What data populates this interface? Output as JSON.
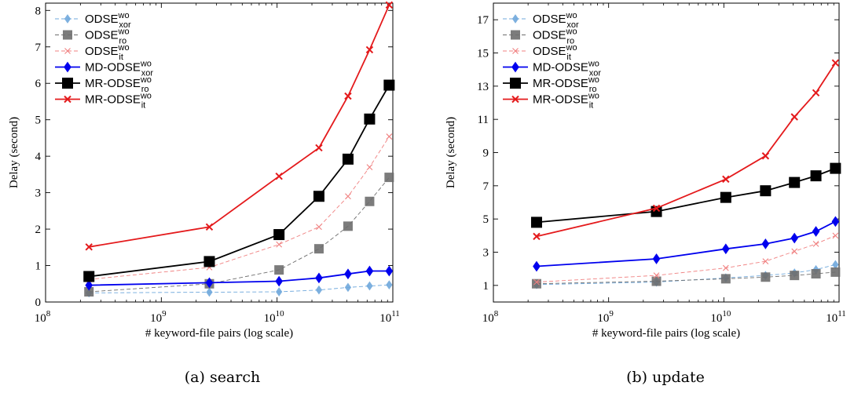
{
  "chart_data": [
    {
      "type": "line",
      "caption": "(a) search",
      "xlabel": "# keyword-file pairs (log scale)",
      "ylabel": "Delay (second)",
      "xscale": "log",
      "xlim": [
        100000000,
        100000000000
      ],
      "ylim": [
        0,
        8.2
      ],
      "xticks": [
        100000000,
        1000000000,
        10000000000,
        100000000000
      ],
      "xtick_labels": [
        {
          "base": "10",
          "exp": "8"
        },
        {
          "base": "10",
          "exp": "9"
        },
        {
          "base": "10",
          "exp": "10"
        },
        {
          "base": "10",
          "exp": "11"
        }
      ],
      "yticks": [
        0,
        1,
        2,
        3,
        4,
        5,
        6,
        7,
        8
      ],
      "legend_position": "top-left",
      "x": [
        237000000,
        2600000000,
        10400000000,
        23000000000,
        41000000000,
        63000000000,
        93000000000
      ],
      "series": [
        {
          "name": "ODSE",
          "sub": "xor",
          "sup": "wo",
          "color": "#6fa8dc",
          "style": "dashed",
          "marker": "diamond",
          "values": [
            0.25,
            0.27,
            0.28,
            0.33,
            0.4,
            0.44,
            0.47
          ]
        },
        {
          "name": "ODSE",
          "sub": "ro",
          "sup": "wo",
          "color": "#6e6e6e",
          "style": "dashed",
          "marker": "square",
          "values": [
            0.28,
            0.5,
            0.88,
            1.46,
            2.08,
            2.76,
            3.42
          ]
        },
        {
          "name": "ODSE",
          "sub": "it",
          "sup": "wo",
          "color": "#f08080",
          "style": "dashed",
          "marker": "x",
          "values": [
            0.62,
            0.95,
            1.58,
            2.06,
            2.9,
            3.7,
            4.54
          ]
        },
        {
          "name": "MD-ODSE",
          "sub": "xor",
          "sup": "wo",
          "color": "#0000ee",
          "style": "solid",
          "marker": "diamond",
          "values": [
            0.46,
            0.53,
            0.57,
            0.66,
            0.77,
            0.85,
            0.85
          ]
        },
        {
          "name": "MR-ODSE",
          "sub": "ro",
          "sup": "wo",
          "color": "#000000",
          "style": "solid",
          "marker": "square",
          "values": [
            0.7,
            1.11,
            1.85,
            2.9,
            3.92,
            5.02,
            5.95
          ]
        },
        {
          "name": "MR-ODSE",
          "sub": "it",
          "sup": "wo",
          "color": "#e41a1c",
          "style": "solid",
          "marker": "x",
          "values": [
            1.51,
            2.06,
            3.45,
            4.23,
            5.65,
            6.92,
            8.15
          ]
        }
      ]
    },
    {
      "type": "line",
      "caption": "(b) update",
      "xlabel": "# keyword-file pairs (log scale)",
      "ylabel": "Delay (second)",
      "xscale": "log",
      "xlim": [
        100000000,
        100000000000
      ],
      "ylim": [
        0,
        18
      ],
      "xticks": [
        100000000,
        1000000000,
        10000000000,
        100000000000
      ],
      "xtick_labels": [
        {
          "base": "10",
          "exp": "8"
        },
        {
          "base": "10",
          "exp": "9"
        },
        {
          "base": "10",
          "exp": "10"
        },
        {
          "base": "10",
          "exp": "11"
        }
      ],
      "yticks": [
        1,
        3,
        5,
        7,
        9,
        11,
        13,
        15,
        17
      ],
      "legend_position": "top-left",
      "x": [
        237000000,
        2600000000,
        10400000000,
        23000000000,
        41000000000,
        63000000000,
        93000000000
      ],
      "series": [
        {
          "name": "ODSE",
          "sub": "xor",
          "sup": "wo",
          "color": "#6fa8dc",
          "style": "dashed",
          "marker": "diamond",
          "values": [
            1.05,
            1.2,
            1.45,
            1.6,
            1.75,
            1.95,
            2.25
          ]
        },
        {
          "name": "ODSE",
          "sub": "ro",
          "sup": "wo",
          "color": "#6e6e6e",
          "style": "dashed",
          "marker": "square",
          "values": [
            1.1,
            1.25,
            1.4,
            1.5,
            1.6,
            1.7,
            1.8
          ]
        },
        {
          "name": "ODSE",
          "sub": "it",
          "sup": "wo",
          "color": "#f08080",
          "style": "dashed",
          "marker": "x",
          "values": [
            1.2,
            1.6,
            2.05,
            2.45,
            3.05,
            3.5,
            4.0
          ]
        },
        {
          "name": "MD-ODSE",
          "sub": "xor",
          "sup": "wo",
          "color": "#0000ee",
          "style": "solid",
          "marker": "diamond",
          "values": [
            2.15,
            2.6,
            3.2,
            3.5,
            3.85,
            4.25,
            4.85
          ]
        },
        {
          "name": "MR-ODSE",
          "sub": "ro",
          "sup": "wo",
          "color": "#000000",
          "style": "solid",
          "marker": "square",
          "values": [
            4.8,
            5.45,
            6.3,
            6.7,
            7.2,
            7.6,
            8.05
          ]
        },
        {
          "name": "MR-ODSE",
          "sub": "it",
          "sup": "wo",
          "color": "#e41a1c",
          "style": "solid",
          "marker": "x",
          "values": [
            3.95,
            5.65,
            7.4,
            8.8,
            11.15,
            12.6,
            14.4
          ]
        }
      ]
    }
  ]
}
